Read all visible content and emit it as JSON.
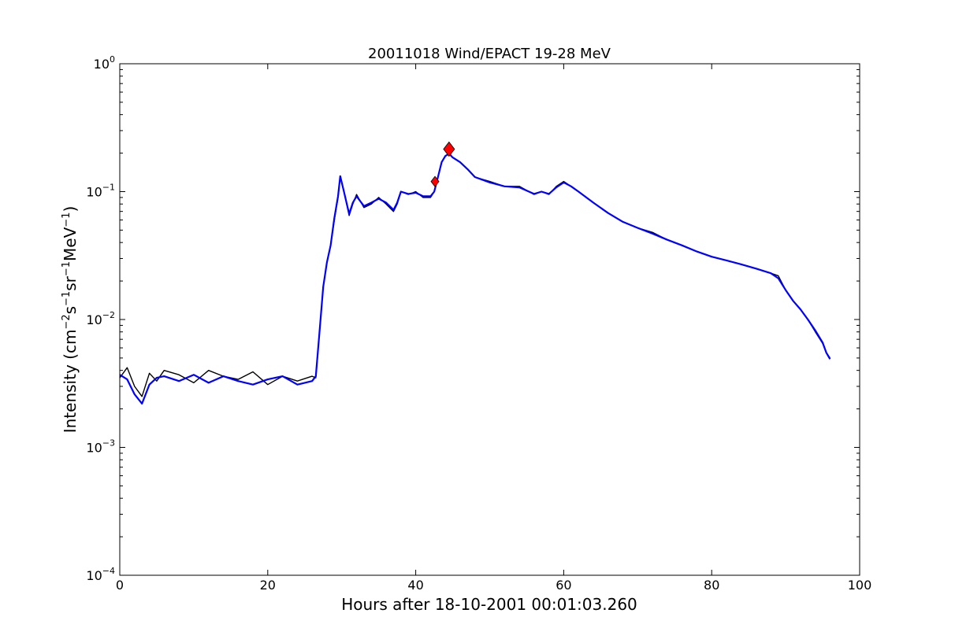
{
  "chart_data": {
    "type": "line",
    "title": "20011018 Wind/EPACT 19-28 MeV",
    "xlabel": "Hours after 18-10-2001 00:01:03.260",
    "ylabel": {
      "prefix": "Intensity (cm",
      "sup1": "−2",
      "mid1": "s",
      "sup2": "−1",
      "mid2": "sr",
      "sup3": "−1",
      "mid3": "MeV",
      "sup4": "−1",
      "suffix": ")"
    },
    "xlim": [
      0,
      100
    ],
    "ylim": [
      0.0001,
      1
    ],
    "yscale": "log",
    "grid": false,
    "x_ticks": [
      "0",
      "20",
      "40",
      "60",
      "80",
      "100"
    ],
    "y_ticks": [
      {
        "base": "10",
        "exp": "−4"
      },
      {
        "base": "10",
        "exp": "−3"
      },
      {
        "base": "10",
        "exp": "−2"
      },
      {
        "base": "10",
        "exp": "−1"
      },
      {
        "base": "10",
        "exp": "0"
      }
    ],
    "series": [
      {
        "role": "raw intensity",
        "color": "#000000",
        "x": [
          0,
          1,
          2,
          3,
          4,
          5,
          6,
          8,
          10,
          12,
          14,
          16,
          18,
          20,
          22,
          24,
          26,
          26.5,
          27,
          27.5,
          28,
          28.5,
          29,
          29.5,
          29.8,
          30.3,
          31,
          31.5,
          32,
          33,
          34,
          35,
          36,
          37,
          37.5,
          38,
          39,
          40,
          41,
          42,
          42.5,
          43,
          43.5,
          44,
          44.5,
          45,
          46,
          47,
          48,
          50,
          52,
          54,
          56,
          57,
          58,
          59,
          60,
          61,
          62,
          64,
          66,
          68,
          70,
          72,
          74,
          76,
          78,
          80,
          82,
          84,
          86,
          88,
          89,
          90,
          91,
          92,
          93,
          94,
          95,
          95.5,
          96
        ],
        "y": [
          0.0035,
          0.0042,
          0.003,
          0.0025,
          0.0038,
          0.0033,
          0.004,
          0.0037,
          0.0032,
          0.004,
          0.0036,
          0.0034,
          0.0039,
          0.0031,
          0.0036,
          0.0033,
          0.0036,
          0.0035,
          0.008,
          0.018,
          0.028,
          0.038,
          0.06,
          0.09,
          0.13,
          0.1,
          0.065,
          0.08,
          0.095,
          0.075,
          0.08,
          0.09,
          0.08,
          0.07,
          0.08,
          0.1,
          0.095,
          0.1,
          0.09,
          0.09,
          0.1,
          0.13,
          0.17,
          0.19,
          0.2,
          0.185,
          0.17,
          0.15,
          0.13,
          0.12,
          0.11,
          0.11,
          0.095,
          0.1,
          0.095,
          0.11,
          0.12,
          0.11,
          0.1,
          0.082,
          0.068,
          0.058,
          0.052,
          0.048,
          0.042,
          0.038,
          0.034,
          0.031,
          0.029,
          0.027,
          0.025,
          0.023,
          0.022,
          0.017,
          0.014,
          0.012,
          0.01,
          0.008,
          0.0065,
          0.0055,
          0.005
        ]
      },
      {
        "role": "smoothed intensity",
        "color": "#0000ff",
        "x": [
          0,
          1,
          2,
          3,
          4,
          5,
          6,
          8,
          10,
          12,
          14,
          16,
          18,
          20,
          22,
          24,
          26,
          26.5,
          27,
          27.5,
          28,
          28.5,
          29,
          29.5,
          29.8,
          30.3,
          31,
          31.5,
          32,
          33,
          34,
          35,
          36,
          37,
          37.5,
          38,
          39,
          40,
          41,
          42,
          42.5,
          43,
          43.5,
          44,
          44.5,
          45,
          46,
          47,
          48,
          50,
          52,
          54,
          56,
          57,
          58,
          59,
          60,
          61,
          62,
          64,
          66,
          68,
          70,
          72,
          74,
          76,
          78,
          80,
          82,
          84,
          86,
          88,
          89,
          90,
          91,
          92,
          93,
          94,
          95,
          95.5,
          96
        ],
        "y": [
          0.0037,
          0.0034,
          0.0026,
          0.0022,
          0.0031,
          0.0035,
          0.0036,
          0.0033,
          0.0037,
          0.0032,
          0.0036,
          0.0033,
          0.0031,
          0.0034,
          0.0036,
          0.0031,
          0.0033,
          0.0036,
          0.008,
          0.018,
          0.028,
          0.038,
          0.062,
          0.092,
          0.132,
          0.1,
          0.067,
          0.082,
          0.092,
          0.077,
          0.082,
          0.088,
          0.082,
          0.072,
          0.082,
          0.1,
          0.096,
          0.098,
          0.092,
          0.092,
          0.1,
          0.13,
          0.17,
          0.19,
          0.198,
          0.185,
          0.17,
          0.15,
          0.13,
          0.118,
          0.11,
          0.108,
          0.096,
          0.1,
          0.096,
          0.108,
          0.118,
          0.11,
          0.1,
          0.082,
          0.068,
          0.058,
          0.052,
          0.047,
          0.042,
          0.038,
          0.034,
          0.031,
          0.029,
          0.027,
          0.025,
          0.023,
          0.021,
          0.017,
          0.014,
          0.012,
          0.01,
          0.0082,
          0.0066,
          0.0055,
          0.0049
        ]
      }
    ],
    "markers": [
      {
        "role": "onset marker",
        "shape": "diamond",
        "color": "#ff0000",
        "x": 42.6,
        "y": 0.12
      },
      {
        "role": "peak marker",
        "shape": "diamond",
        "color": "#ff0000",
        "x": 44.5,
        "y": 0.215
      }
    ]
  }
}
